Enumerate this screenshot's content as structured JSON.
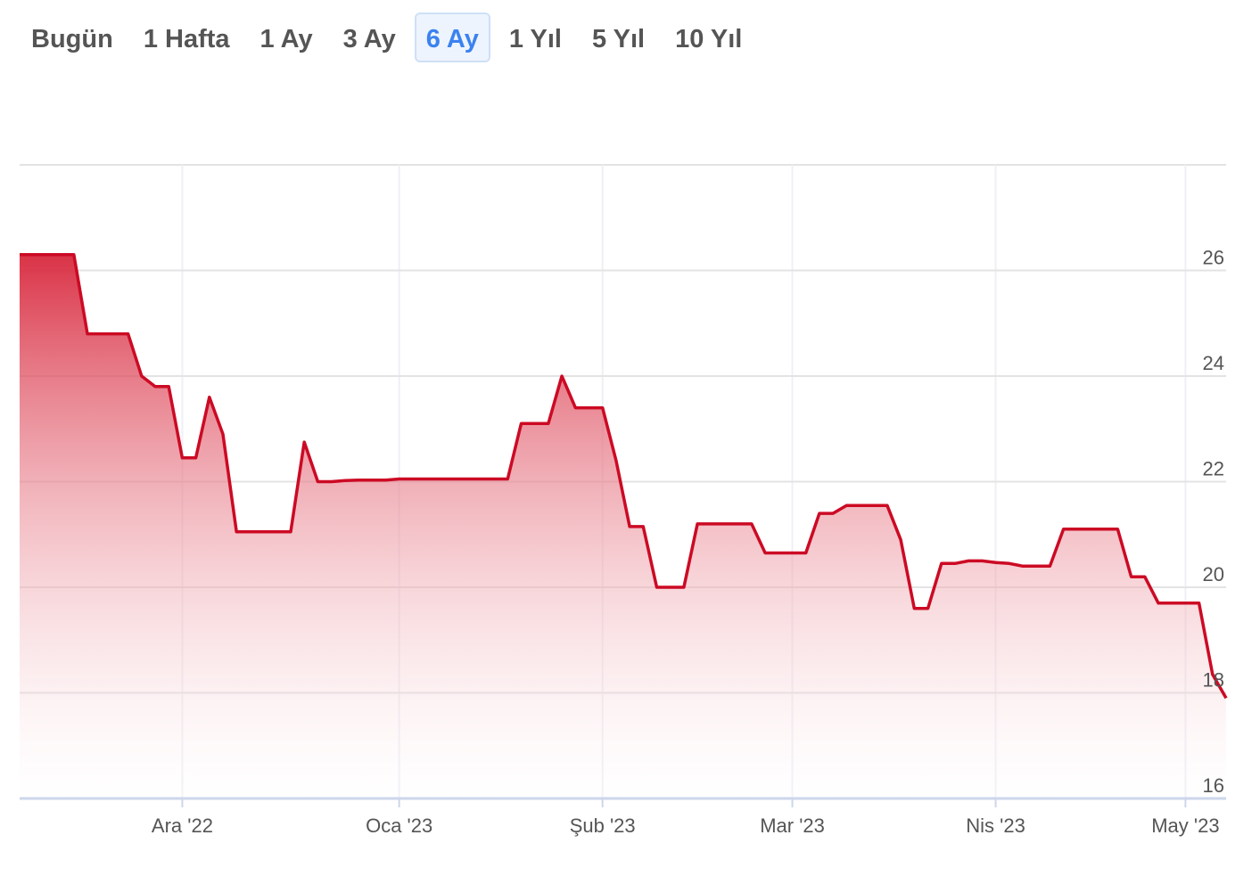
{
  "tabs": [
    "Bugün",
    "1 Hafta",
    "1 Ay",
    "3 Ay",
    "6 Ay",
    "1 Yıl",
    "5 Yıl",
    "10 Yıl"
  ],
  "selected_tab": "6 Ay",
  "chart_data": {
    "type": "area",
    "color": "#cc0a24",
    "categories": [
      null,
      null,
      null,
      null,
      null,
      null,
      null,
      null,
      null,
      null,
      null,
      null,
      "Ara '22",
      null,
      null,
      null,
      null,
      null,
      null,
      null,
      null,
      null,
      null,
      null,
      null,
      null,
      null,
      null,
      "Oca '23",
      null,
      null,
      null,
      null,
      null,
      null,
      null,
      null,
      null,
      null,
      null,
      null,
      null,
      null,
      "Şub '23",
      null,
      null,
      null,
      null,
      null,
      null,
      null,
      null,
      null,
      null,
      null,
      null,
      null,
      "Mar '23",
      null,
      null,
      null,
      null,
      null,
      null,
      null,
      null,
      null,
      null,
      null,
      null,
      null,
      null,
      "Nis '23",
      null,
      null,
      null,
      null,
      null,
      null,
      null,
      null,
      null,
      null,
      null,
      null,
      null,
      "May '23",
      null,
      null,
      null
    ],
    "values": [
      26.3,
      26.3,
      26.3,
      26.3,
      26.3,
      24.8,
      24.8,
      24.8,
      24.8,
      24.0,
      23.8,
      23.8,
      22.45,
      22.45,
      23.6,
      22.9,
      21.05,
      21.05,
      21.05,
      21.05,
      21.05,
      22.75,
      22.0,
      22.0,
      22.02,
      22.03,
      22.03,
      22.03,
      22.05,
      22.05,
      22.05,
      22.05,
      22.05,
      22.05,
      22.05,
      22.05,
      22.05,
      23.1,
      23.1,
      23.1,
      24.0,
      23.4,
      23.4,
      23.4,
      22.4,
      21.15,
      21.15,
      20.0,
      20.0,
      20.0,
      21.2,
      21.2,
      21.2,
      21.2,
      21.2,
      20.65,
      20.65,
      20.65,
      20.65,
      21.4,
      21.4,
      21.55,
      21.55,
      21.55,
      21.55,
      20.9,
      19.6,
      19.6,
      20.45,
      20.45,
      20.5,
      20.5,
      20.47,
      20.45,
      20.4,
      20.4,
      20.4,
      21.1,
      21.1,
      21.1,
      21.1,
      21.1,
      20.2,
      20.2,
      19.7,
      19.7,
      19.7,
      19.7,
      18.35,
      17.9
    ],
    "ylim": [
      16,
      28
    ],
    "yticks": [
      16,
      18,
      20,
      22,
      24,
      26
    ],
    "grid": true
  }
}
